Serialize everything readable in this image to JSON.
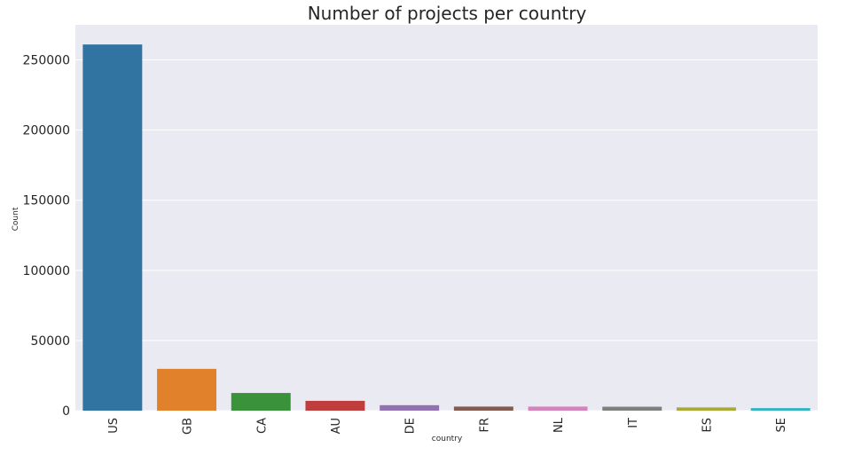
{
  "chart_data": {
    "type": "bar",
    "title": "Number of projects per country",
    "xlabel": "country",
    "ylabel": "Count",
    "categories": [
      "US",
      "GB",
      "CA",
      "AU",
      "DE",
      "FR",
      "NL",
      "IT",
      "ES",
      "SE"
    ],
    "values": [
      261000,
      29800,
      12600,
      7000,
      3900,
      2900,
      2900,
      2800,
      2300,
      1800
    ],
    "colors": [
      "#3274a1",
      "#e1812c",
      "#3a923a",
      "#c03d3e",
      "#9372b2",
      "#845b53",
      "#d684bd",
      "#7f7f7f",
      "#a9aa35",
      "#2eb4c4"
    ],
    "ylim": [
      0,
      275000
    ],
    "yticks": [
      0,
      50000,
      100000,
      150000,
      200000,
      250000
    ],
    "ytick_labels": [
      "0",
      "50000",
      "100000",
      "150000",
      "200000",
      "250000"
    ],
    "grid": true,
    "style": {
      "plot_background": "#eaeaf2",
      "grid_color": "#ffffff"
    }
  }
}
